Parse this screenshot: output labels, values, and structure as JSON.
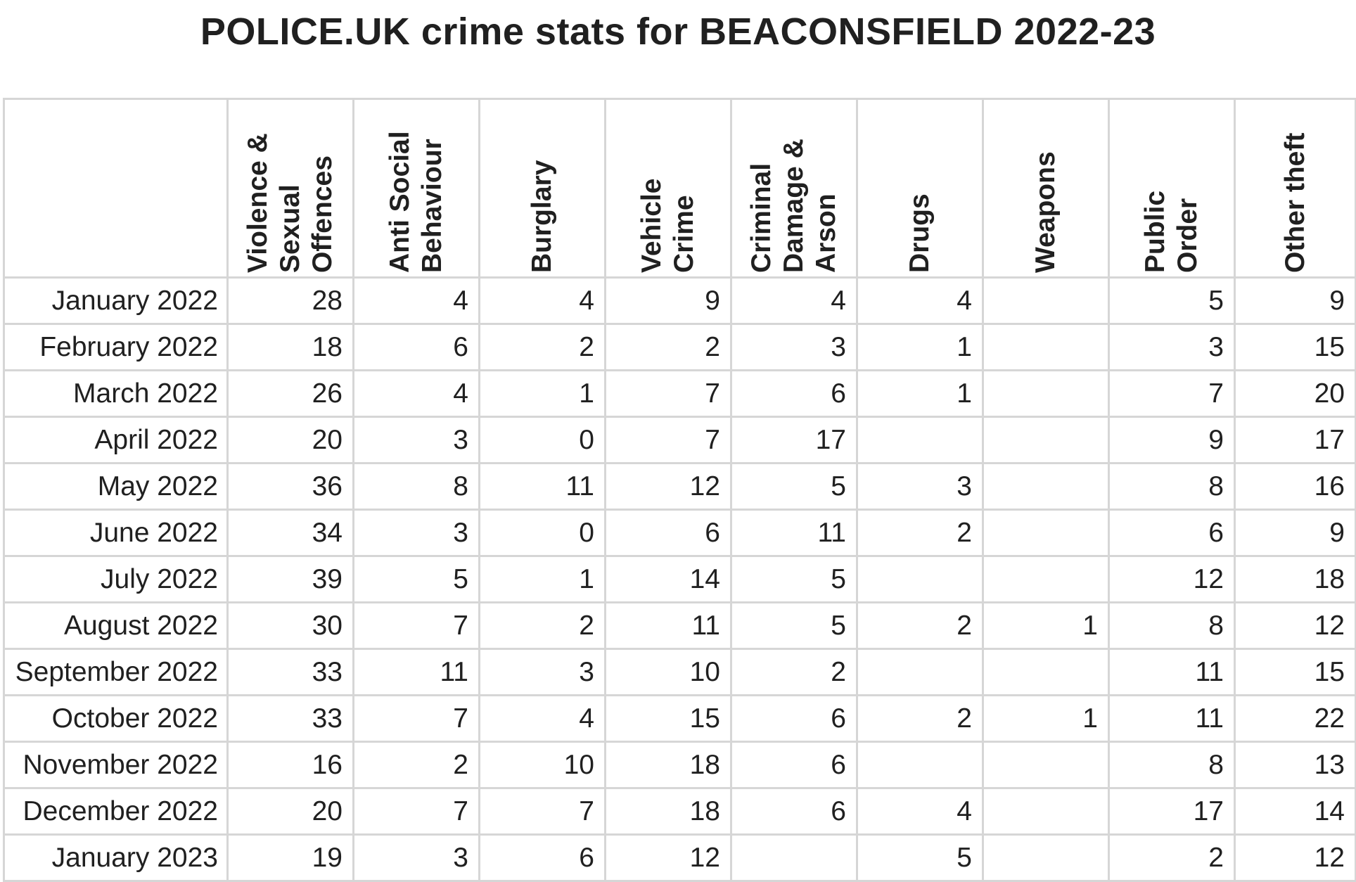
{
  "chart_data": {
    "type": "table",
    "title": "POLICE.UK crime stats for BEACONSFIELD 2022-23",
    "columns": [
      "Violence &\nSexual\nOffences",
      "Anti Social\nBehaviour",
      "Burglary",
      "Vehicle\nCrime",
      "Criminal\nDamage &\nArson",
      "Drugs",
      "Weapons",
      "Public\nOrder",
      "Other theft"
    ],
    "rows": [
      {
        "month": "January 2022",
        "values": [
          "28",
          "4",
          "4",
          "9",
          "4",
          "4",
          "",
          "5",
          "9"
        ]
      },
      {
        "month": "February 2022",
        "values": [
          "18",
          "6",
          "2",
          "2",
          "3",
          "1",
          "",
          "3",
          "15"
        ]
      },
      {
        "month": "March 2022",
        "values": [
          "26",
          "4",
          "1",
          "7",
          "6",
          "1",
          "",
          "7",
          "20"
        ]
      },
      {
        "month": "April 2022",
        "values": [
          "20",
          "3",
          "0",
          "7",
          "17",
          "",
          "",
          "9",
          "17"
        ]
      },
      {
        "month": "May 2022",
        "values": [
          "36",
          "8",
          "11",
          "12",
          "5",
          "3",
          "",
          "8",
          "16"
        ]
      },
      {
        "month": "June 2022",
        "values": [
          "34",
          "3",
          "0",
          "6",
          "11",
          "2",
          "",
          "6",
          "9"
        ]
      },
      {
        "month": "July 2022",
        "values": [
          "39",
          "5",
          "1",
          "14",
          "5",
          "",
          "",
          "12",
          "18"
        ]
      },
      {
        "month": "August 2022",
        "values": [
          "30",
          "7",
          "2",
          "11",
          "5",
          "2",
          "1",
          "8",
          "12"
        ]
      },
      {
        "month": "September 2022",
        "values": [
          "33",
          "11",
          "3",
          "10",
          "2",
          "",
          "",
          "11",
          "15"
        ]
      },
      {
        "month": "October 2022",
        "values": [
          "33",
          "7",
          "4",
          "15",
          "6",
          "2",
          "1",
          "11",
          "22"
        ]
      },
      {
        "month": "November 2022",
        "values": [
          "16",
          "2",
          "10",
          "18",
          "6",
          "",
          "",
          "8",
          "13"
        ]
      },
      {
        "month": "December 2022",
        "values": [
          "20",
          "7",
          "7",
          "18",
          "6",
          "4",
          "",
          "17",
          "14"
        ]
      },
      {
        "month": "January 2023",
        "values": [
          "19",
          "3",
          "6",
          "12",
          "",
          "5",
          "",
          "2",
          "12"
        ]
      }
    ]
  }
}
